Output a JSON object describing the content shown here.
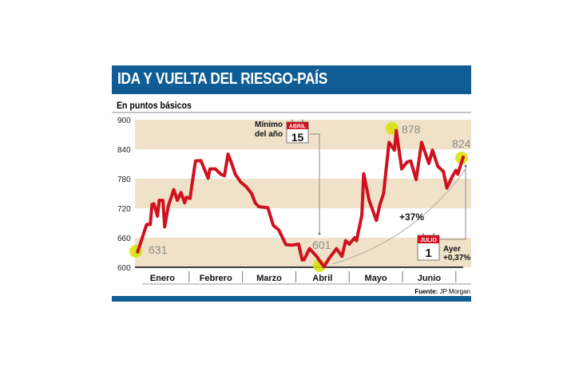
{
  "header": {
    "title": "IDA Y VUELTA DEL RIESGO-PAÍS",
    "subtitle": "En puntos básicos"
  },
  "source": {
    "label": "Fuente:",
    "value": "JP Morgan"
  },
  "colors": {
    "header": "#0f5d94",
    "line": "#d0101f",
    "band": "#efe2c8",
    "highlight": "#d6e000"
  },
  "annotations": {
    "min_label_1": "Mínimo",
    "min_label_2": "del año",
    "min_calendar_month": "ABRIL",
    "min_calendar_day": "15",
    "start_value": "631",
    "min_value": "601",
    "max_value": "878",
    "last_value": "824",
    "change": "+37%",
    "last_calendar_month": "JULIO",
    "last_calendar_day": "1",
    "ayer_label": "Ayer",
    "ayer_change": "+0,37%"
  },
  "chart_data": {
    "type": "line",
    "title": "IDA Y VUELTA DEL RIESGO-PAÍS",
    "subtitle": "En puntos básicos",
    "ylim": [
      600,
      900
    ],
    "yticks": [
      "900",
      "840",
      "780",
      "720",
      "660",
      "600"
    ],
    "xticks": [
      "Enero",
      "Febrero",
      "Marzo",
      "Abril",
      "Mayo",
      "Junio"
    ],
    "grid": "alternating horizontal bands",
    "series": [
      {
        "x": [
          "01-02",
          "01-07",
          "01-09",
          "01-10",
          "01-11",
          "01-13",
          "01-14",
          "01-16",
          "01-17",
          "01-19",
          "01-22",
          "01-24",
          "01-26",
          "01-28",
          "01-29",
          "01-31",
          "02-01",
          "02-03",
          "02-06",
          "02-10",
          "02-11",
          "02-14",
          "02-17",
          "02-19",
          "02-21",
          "02-23",
          "02-25",
          "02-28",
          "03-03",
          "03-06",
          "03-08",
          "03-10",
          "03-15",
          "03-18",
          "03-21",
          "03-25",
          "03-28",
          "04-01",
          "04-03",
          "04-04",
          "04-07",
          "04-11",
          "04-15",
          "04-18",
          "04-22",
          "04-25",
          "04-27",
          "04-29",
          "05-02",
          "05-03",
          "05-06",
          "05-07",
          "05-10",
          "05-14",
          "05-16",
          "05-18",
          "05-21",
          "05-24",
          "05-25",
          "05-28",
          "05-31",
          "06-02",
          "06-05",
          "06-08",
          "06-12",
          "06-14",
          "06-17",
          "06-20",
          "06-22",
          "06-25",
          "06-27",
          "06-28",
          "07-01"
        ],
        "y": [
          631,
          687,
          687,
          728,
          729,
          704,
          736,
          736,
          682,
          725,
          758,
          736,
          752,
          731,
          742,
          740,
          766,
          816,
          817,
          781,
          800,
          800,
          789,
          786,
          830,
          811,
          789,
          773,
          764,
          750,
          731,
          723,
          721,
          685,
          676,
          646,
          645,
          647,
          615,
          615,
          638,
          622,
          601,
          619,
          638,
          622,
          654,
          647,
          660,
          654,
          706,
          790,
          736,
          695,
          728,
          750,
          854,
          838,
          878,
          800,
          814,
          816,
          778,
          854,
          811,
          838,
          805,
          795,
          761,
          785,
          797,
          789,
          824
        ]
      }
    ]
  }
}
